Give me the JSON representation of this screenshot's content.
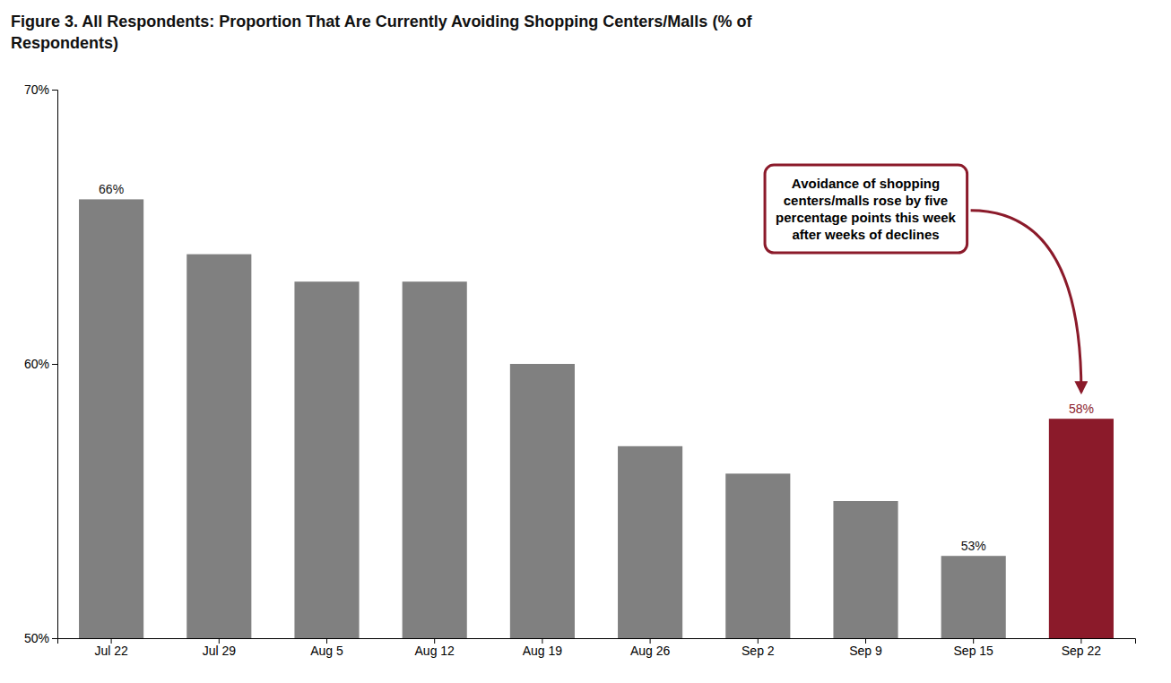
{
  "chart_data": {
    "type": "bar",
    "title": "Figure 3. All Respondents: Proportion That Are Currently Avoiding Shopping Centers/Malls (% of\nRespondents)",
    "categories": [
      "Jul 22",
      "Jul 29",
      "Aug 5",
      "Aug 12",
      "Aug 19",
      "Aug 26",
      "Sep 2",
      "Sep 9",
      "Sep 15",
      "Sep 22"
    ],
    "values": [
      66,
      64,
      63,
      63,
      60,
      57,
      56,
      55,
      53,
      58
    ],
    "value_labels": [
      "66%",
      null,
      null,
      null,
      null,
      null,
      null,
      null,
      "53%",
      "58%"
    ],
    "data_labels": true,
    "colors": [
      "#808080",
      "#808080",
      "#808080",
      "#808080",
      "#808080",
      "#808080",
      "#808080",
      "#808080",
      "#808080",
      "#8B1A2A"
    ],
    "ylim": [
      50,
      70
    ],
    "yticks": [
      {
        "value": 50,
        "label": "50%"
      },
      {
        "value": 60,
        "label": "60%"
      },
      {
        "value": 70,
        "label": "70%"
      }
    ],
    "grid": false,
    "annotations": [
      "Avoidance of shopping\ncenters/malls rose by five\npercentage points this week\nafter weeks of declines"
    ]
  }
}
